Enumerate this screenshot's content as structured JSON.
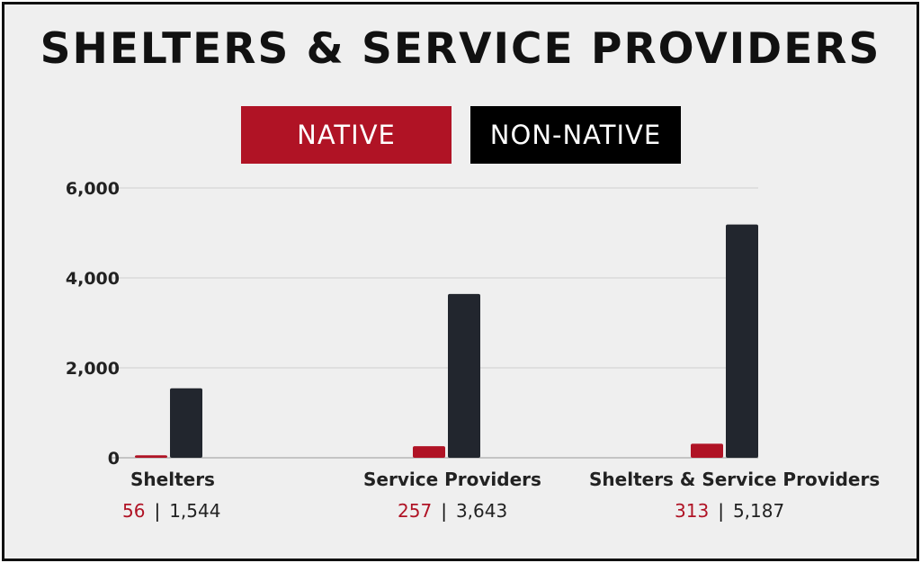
{
  "title": "SHELTERS & SERVICE PROVIDERS",
  "colors": {
    "native": "#b01325",
    "non_native": "#22262e",
    "background": "#efefef",
    "grid": "#cfcfcf"
  },
  "legend": {
    "native": "NATIVE",
    "non_native": "NON-NATIVE"
  },
  "value_separator": "|",
  "chart_data": {
    "type": "bar",
    "title": "SHELTERS & SERVICE PROVIDERS",
    "categories": [
      "Shelters",
      "Service Providers",
      "Shelters & Service Providers"
    ],
    "series": [
      {
        "name": "NATIVE",
        "values": [
          56,
          257,
          313
        ],
        "labels": [
          "56",
          "257",
          "313"
        ]
      },
      {
        "name": "NON-NATIVE",
        "values": [
          1544,
          3643,
          5187
        ],
        "labels": [
          "1,544",
          "3,643",
          "5,187"
        ]
      }
    ],
    "y_ticks": [
      "0",
      "2,000",
      "4,000",
      "6,000"
    ],
    "ylim": [
      0,
      6000
    ],
    "grid": true,
    "legend_position": "top"
  }
}
